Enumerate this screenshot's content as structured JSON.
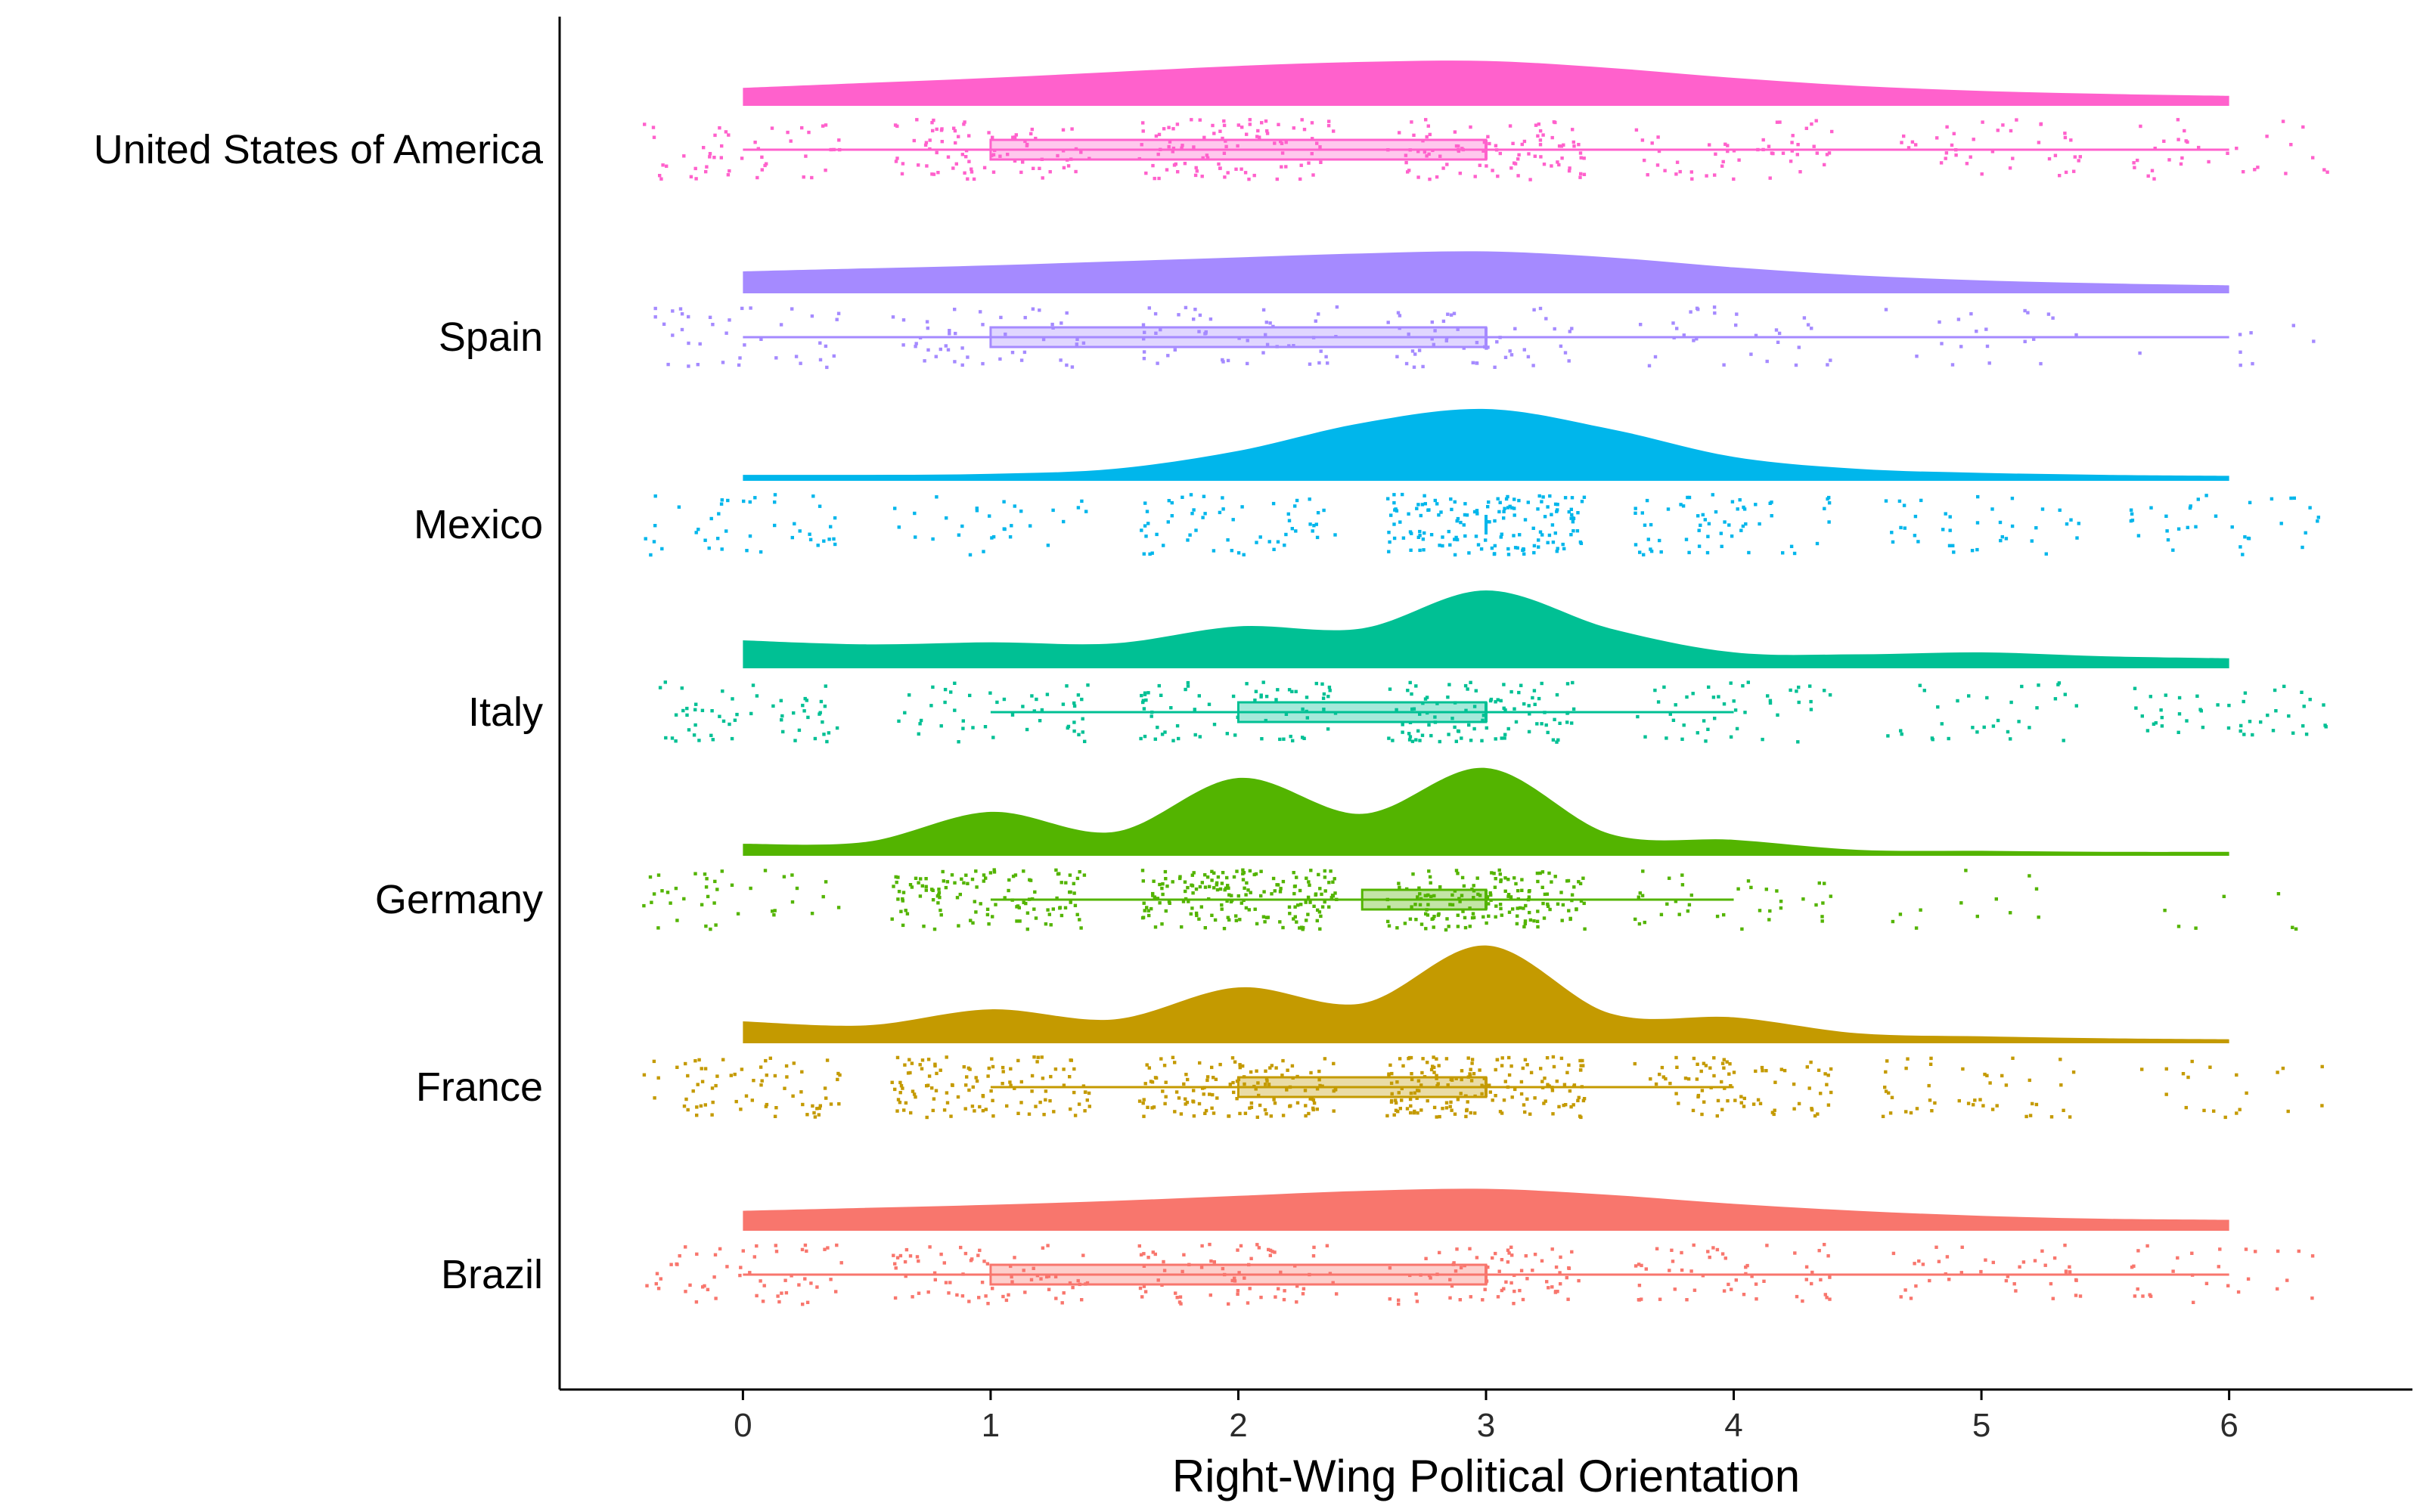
{
  "chart_data": {
    "type": "raincloud",
    "title": "",
    "xlabel": "Right-Wing Political Orientation",
    "ylabel": "",
    "xlim": [
      -0.74,
      6.74
    ],
    "xticks": [
      0,
      1,
      2,
      3,
      4,
      5,
      6
    ],
    "xtick_labels": [
      "0",
      "1",
      "2",
      "3",
      "4",
      "5",
      "6"
    ],
    "grid": false,
    "legend": "none",
    "point_jitter": 0.4,
    "series": [
      {
        "name": "United States of America",
        "color": "#FF61CC",
        "density": [
          {
            "x": 0,
            "y": 0.18
          },
          {
            "x": 0.5,
            "y": 0.23
          },
          {
            "x": 1,
            "y": 0.28
          },
          {
            "x": 1.5,
            "y": 0.34
          },
          {
            "x": 2,
            "y": 0.4
          },
          {
            "x": 2.5,
            "y": 0.44
          },
          {
            "x": 3,
            "y": 0.45
          },
          {
            "x": 3.5,
            "y": 0.38
          },
          {
            "x": 4,
            "y": 0.28
          },
          {
            "x": 4.5,
            "y": 0.2
          },
          {
            "x": 5,
            "y": 0.15
          },
          {
            "x": 5.5,
            "y": 0.12
          },
          {
            "x": 6,
            "y": 0.1
          }
        ],
        "points_weight": [
          48,
          82,
          95,
          90,
          52,
          40,
          32
        ],
        "box": {
          "min": 0,
          "q1": 1,
          "median": 3,
          "q3": 3,
          "max": 6
        }
      },
      {
        "name": "Spain",
        "color": "#A58AFF",
        "density": [
          {
            "x": 0,
            "y": 0.22
          },
          {
            "x": 0.5,
            "y": 0.25
          },
          {
            "x": 1,
            "y": 0.28
          },
          {
            "x": 1.5,
            "y": 0.32
          },
          {
            "x": 2,
            "y": 0.36
          },
          {
            "x": 2.5,
            "y": 0.4
          },
          {
            "x": 3,
            "y": 0.42
          },
          {
            "x": 3.5,
            "y": 0.36
          },
          {
            "x": 4,
            "y": 0.26
          },
          {
            "x": 4.5,
            "y": 0.18
          },
          {
            "x": 5,
            "y": 0.13
          },
          {
            "x": 5.5,
            "y": 0.1
          },
          {
            "x": 6,
            "y": 0.08
          }
        ],
        "points_weight": [
          38,
          45,
          48,
          50,
          30,
          20,
          8
        ],
        "box": {
          "min": 0,
          "q1": 1,
          "median": 3,
          "q3": 3,
          "max": 6
        }
      },
      {
        "name": "Mexico",
        "color": "#00B6EB",
        "density": [
          {
            "x": 0,
            "y": 0.06
          },
          {
            "x": 0.5,
            "y": 0.06
          },
          {
            "x": 1,
            "y": 0.07
          },
          {
            "x": 1.5,
            "y": 0.12
          },
          {
            "x": 2,
            "y": 0.3
          },
          {
            "x": 2.5,
            "y": 0.58
          },
          {
            "x": 3,
            "y": 0.72
          },
          {
            "x": 3.5,
            "y": 0.52
          },
          {
            "x": 4,
            "y": 0.24
          },
          {
            "x": 4.5,
            "y": 0.12
          },
          {
            "x": 5,
            "y": 0.08
          },
          {
            "x": 5.5,
            "y": 0.06
          },
          {
            "x": 6,
            "y": 0.05
          }
        ],
        "points_weight": [
          42,
          30,
          58,
          150,
          60,
          38,
          34
        ],
        "box": {
          "min": 3,
          "q1": 3,
          "median": 3,
          "q3": 3,
          "max": 3
        }
      },
      {
        "name": "Italy",
        "color": "#00C094",
        "density": [
          {
            "x": 0,
            "y": 0.28
          },
          {
            "x": 0.5,
            "y": 0.24
          },
          {
            "x": 1,
            "y": 0.26
          },
          {
            "x": 1.5,
            "y": 0.25
          },
          {
            "x": 2,
            "y": 0.42
          },
          {
            "x": 2.5,
            "y": 0.4
          },
          {
            "x": 3,
            "y": 0.78
          },
          {
            "x": 3.5,
            "y": 0.4
          },
          {
            "x": 4,
            "y": 0.16
          },
          {
            "x": 4.5,
            "y": 0.14
          },
          {
            "x": 5,
            "y": 0.16
          },
          {
            "x": 5.5,
            "y": 0.12
          },
          {
            "x": 6,
            "y": 0.1
          }
        ],
        "points_weight": [
          55,
          48,
          70,
          100,
          45,
          32,
          45
        ],
        "box": {
          "min": 1,
          "q1": 2,
          "median": 3,
          "q3": 3,
          "max": 4
        }
      },
      {
        "name": "Germany",
        "color": "#53B400",
        "density": [
          {
            "x": 0,
            "y": 0.12
          },
          {
            "x": 0.5,
            "y": 0.14
          },
          {
            "x": 1,
            "y": 0.44
          },
          {
            "x": 1.5,
            "y": 0.24
          },
          {
            "x": 2,
            "y": 0.78
          },
          {
            "x": 2.5,
            "y": 0.42
          },
          {
            "x": 3,
            "y": 0.88
          },
          {
            "x": 3.5,
            "y": 0.22
          },
          {
            "x": 4,
            "y": 0.16
          },
          {
            "x": 4.5,
            "y": 0.06
          },
          {
            "x": 5,
            "y": 0.05
          },
          {
            "x": 5.5,
            "y": 0.04
          },
          {
            "x": 6,
            "y": 0.04
          }
        ],
        "points_weight": [
          40,
          120,
          180,
          160,
          38,
          12,
          7
        ],
        "box": {
          "min": 1,
          "q1": 2.5,
          "median": 3,
          "q3": 3,
          "max": 4
        }
      },
      {
        "name": "France",
        "color": "#C49A00",
        "density": [
          {
            "x": 0,
            "y": 0.22
          },
          {
            "x": 0.5,
            "y": 0.18
          },
          {
            "x": 1,
            "y": 0.34
          },
          {
            "x": 1.5,
            "y": 0.24
          },
          {
            "x": 2,
            "y": 0.56
          },
          {
            "x": 2.5,
            "y": 0.4
          },
          {
            "x": 3,
            "y": 0.98
          },
          {
            "x": 3.5,
            "y": 0.3
          },
          {
            "x": 4,
            "y": 0.26
          },
          {
            "x": 4.5,
            "y": 0.1
          },
          {
            "x": 5,
            "y": 0.07
          },
          {
            "x": 5.5,
            "y": 0.05
          },
          {
            "x": 6,
            "y": 0.04
          }
        ],
        "points_weight": [
          70,
          115,
          130,
          170,
          80,
          45,
          20
        ],
        "box": {
          "min": 1,
          "q1": 2,
          "median": 3,
          "q3": 3,
          "max": 4
        }
      },
      {
        "name": "Brazil",
        "color": "#F8766D",
        "density": [
          {
            "x": 0,
            "y": 0.2
          },
          {
            "x": 0.5,
            "y": 0.23
          },
          {
            "x": 1,
            "y": 0.26
          },
          {
            "x": 1.5,
            "y": 0.3
          },
          {
            "x": 2,
            "y": 0.35
          },
          {
            "x": 2.5,
            "y": 0.4
          },
          {
            "x": 3,
            "y": 0.42
          },
          {
            "x": 3.5,
            "y": 0.36
          },
          {
            "x": 4,
            "y": 0.27
          },
          {
            "x": 4.5,
            "y": 0.2
          },
          {
            "x": 5,
            "y": 0.15
          },
          {
            "x": 5.5,
            "y": 0.12
          },
          {
            "x": 6,
            "y": 0.11
          }
        ],
        "points_weight": [
          55,
          70,
          70,
          72,
          55,
          40,
          28
        ],
        "box": {
          "min": 0,
          "q1": 1,
          "median": 3,
          "q3": 3,
          "max": 6
        }
      }
    ]
  }
}
